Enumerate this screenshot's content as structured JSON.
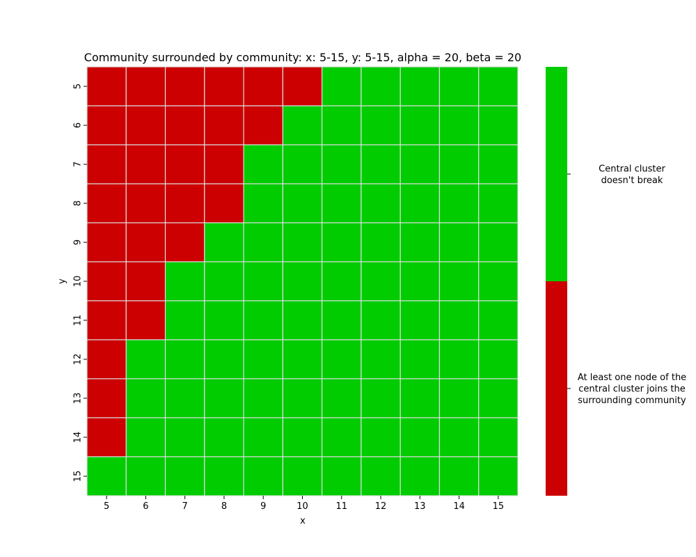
{
  "chart_data": {
    "type": "heatmap",
    "title": "Community surrounded by community: x: 5-15, y: 5-15, alpha = 20, beta = 20",
    "xlabel": "x",
    "ylabel": "y",
    "x": [
      5,
      6,
      7,
      8,
      9,
      10,
      11,
      12,
      13,
      14,
      15
    ],
    "y": [
      5,
      6,
      7,
      8,
      9,
      10,
      11,
      12,
      13,
      14,
      15
    ],
    "first_green_x_by_row": [
      11,
      10,
      9,
      9,
      8,
      7,
      7,
      6,
      6,
      6,
      5
    ],
    "categories": [
      {
        "value": 0,
        "color": "#cc0000",
        "label_lines": [
          "At least one node of the",
          "central cluster joins the",
          "surrounding community"
        ]
      },
      {
        "value": 1,
        "color": "#00cc00",
        "label_lines": [
          "Central cluster",
          "doesn't break"
        ]
      }
    ],
    "colorbar": {
      "position": "right"
    },
    "gridline_color": "#dddddd"
  }
}
